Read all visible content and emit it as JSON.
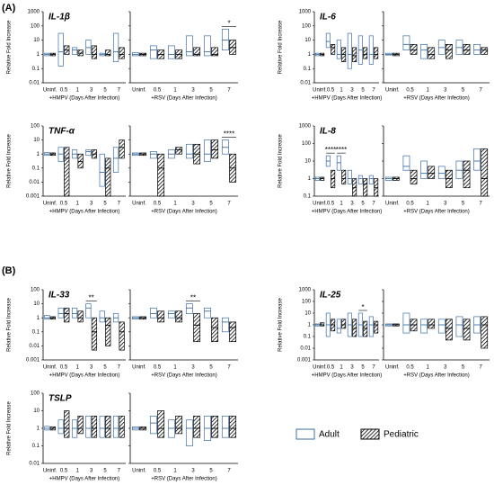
{
  "sections": [
    "(A)",
    "(B)"
  ],
  "chart_data": [
    {
      "type": "box",
      "title": "IL-1β",
      "ylabel": "Relative Fold Increase",
      "xlabel": "+HMPV (Days After Infection)",
      "log": true,
      "ylim": [
        0.01,
        1000
      ],
      "yticks": [
        1000,
        100,
        10,
        1,
        0.1,
        0.01
      ],
      "categories": [
        "Uninf.",
        "0.5",
        "1",
        "3",
        "5",
        "7"
      ],
      "series": [
        {
          "name": "Adult",
          "color": "#3b6ea5",
          "q1": [
            0.8,
            0.15,
            1,
            1,
            0.8,
            0.3
          ],
          "median": [
            1,
            1.5,
            2,
            3,
            1,
            1.5
          ],
          "q3": [
            1.2,
            30,
            3,
            10,
            1.2,
            30
          ]
        },
        {
          "name": "Pediatric",
          "color": "#000000",
          "q1": [
            0.8,
            1,
            0.8,
            0.5,
            0.8,
            0.5
          ],
          "median": [
            1,
            2,
            1.2,
            1,
            1,
            1
          ],
          "q3": [
            1.2,
            4,
            2,
            4,
            2,
            3
          ]
        }
      ]
    },
    {
      "type": "box",
      "xlabel": "+RSV (Days After Infection)",
      "log": true,
      "ylim": [
        0.01,
        1000
      ],
      "yticks": [
        1000,
        100,
        10,
        1,
        0.1,
        0.01
      ],
      "categories": [
        "Uninf.",
        "0.5",
        "1",
        "3",
        "5",
        "7"
      ],
      "series": [
        {
          "name": "Adult",
          "color": "#3b6ea5",
          "q1": [
            0.8,
            0.5,
            0.5,
            0.8,
            0.8,
            2
          ],
          "median": [
            1,
            2,
            1,
            1.5,
            1.5,
            10
          ],
          "q3": [
            1.3,
            4,
            4,
            20,
            20,
            60
          ]
        },
        {
          "name": "Pediatric",
          "color": "#000000",
          "q1": [
            0.8,
            0.5,
            0.5,
            0.8,
            0.8,
            1
          ],
          "median": [
            1,
            1,
            1,
            1,
            1,
            3
          ],
          "q3": [
            1.2,
            2,
            2,
            3,
            3,
            10
          ]
        }
      ],
      "annotations": [
        {
          "text": "*",
          "category": "7"
        }
      ]
    },
    {
      "type": "box",
      "title": "IL-6",
      "ylabel": "Relative Fold Increase",
      "xlabel": "+HMPV (Days After Infection)",
      "log": true,
      "ylim": [
        0.01,
        1000
      ],
      "yticks": [
        1000,
        100,
        10,
        1,
        0.1,
        0.01
      ],
      "categories": [
        "Uninf.",
        "0.5",
        "1",
        "3",
        "5",
        "7"
      ],
      "series": [
        {
          "name": "Adult",
          "color": "#3b6ea5",
          "q1": [
            0.8,
            3,
            0.5,
            0.1,
            0.2,
            0.2
          ],
          "median": [
            1,
            8,
            1,
            1,
            2,
            1
          ],
          "q3": [
            1.2,
            30,
            10,
            30,
            20,
            20
          ]
        },
        {
          "name": "Pediatric",
          "color": "#000000",
          "q1": [
            0.8,
            1,
            0.3,
            0.3,
            0.5,
            0.5
          ],
          "median": [
            1,
            3,
            1,
            0.8,
            1,
            1
          ],
          "q3": [
            1.2,
            5,
            3,
            3,
            3,
            3
          ]
        }
      ]
    },
    {
      "type": "box",
      "xlabel": "+RSV (Days After Infection)",
      "log": true,
      "ylim": [
        0.01,
        1000
      ],
      "yticks": [
        1000,
        100,
        10,
        1,
        0.1,
        0.01
      ],
      "categories": [
        "Uninf.",
        "0.5",
        "1",
        "3",
        "5",
        "7"
      ],
      "series": [
        {
          "name": "Adult",
          "color": "#3b6ea5",
          "q1": [
            0.9,
            2,
            0.5,
            1,
            1,
            1
          ],
          "median": [
            1,
            5,
            2,
            3,
            3,
            2
          ],
          "q3": [
            1.2,
            20,
            5,
            10,
            10,
            5
          ]
        },
        {
          "name": "Pediatric",
          "color": "#000000",
          "q1": [
            0.8,
            1,
            0.5,
            0.5,
            1,
            1
          ],
          "median": [
            1,
            2,
            1,
            2,
            2,
            2
          ],
          "q3": [
            1.2,
            5,
            3,
            5,
            5,
            3
          ]
        }
      ]
    },
    {
      "type": "box",
      "title": "TNF-α",
      "ylabel": "Relative Fold Increase",
      "xlabel": "+HMPV (Days After Infection)",
      "log": true,
      "ylim": [
        0.001,
        100
      ],
      "yticks": [
        100,
        10,
        1,
        0.1,
        0.01,
        0.001
      ],
      "categories": [
        "Uninf.",
        "0.5",
        "1",
        "3",
        "5",
        "7"
      ],
      "series": [
        {
          "name": "Adult",
          "color": "#3b6ea5",
          "q1": [
            0.8,
            0.3,
            0.5,
            0.8,
            0.005,
            0.05
          ],
          "median": [
            1,
            1,
            1,
            1.5,
            0.05,
            0.5
          ],
          "q3": [
            1.3,
            3,
            2,
            2,
            1,
            3
          ]
        },
        {
          "name": "Pediatric",
          "color": "#000000",
          "q1": [
            0.8,
            0.001,
            0.1,
            0.5,
            0.001,
            0.5
          ],
          "median": [
            1,
            0.5,
            0.3,
            1,
            0.1,
            3
          ],
          "q3": [
            1.2,
            3,
            1,
            2,
            0.5,
            10
          ]
        }
      ]
    },
    {
      "type": "box",
      "xlabel": "+RSV (Days After Infection)",
      "log": true,
      "ylim": [
        0.001,
        100
      ],
      "yticks": [
        100,
        10,
        1,
        0.1,
        0.01,
        0.001
      ],
      "categories": [
        "Uninf.",
        "0.5",
        "1",
        "3",
        "5",
        "7"
      ],
      "series": [
        {
          "name": "Adult",
          "color": "#3b6ea5",
          "q1": [
            0.8,
            0.5,
            0.5,
            0.5,
            0.3,
            1
          ],
          "median": [
            1,
            1,
            1,
            1,
            1,
            3
          ],
          "q3": [
            1.2,
            1.5,
            2,
            5,
            10,
            10
          ]
        },
        {
          "name": "Pediatric",
          "color": "#000000",
          "q1": [
            0.8,
            0.001,
            1,
            0.2,
            0.5,
            0.01
          ],
          "median": [
            1,
            0.1,
            2,
            1,
            2,
            0.1
          ],
          "q3": [
            1.2,
            1,
            3,
            5,
            10,
            1
          ]
        }
      ],
      "annotations": [
        {
          "text": "****",
          "category": "7"
        }
      ]
    },
    {
      "type": "box",
      "title": "IL-8",
      "ylabel": "Relative Fold Increase",
      "xlabel": "+HMPV (Days After Infection)",
      "log": true,
      "ylim": [
        0.1,
        1000
      ],
      "yticks": [
        1000,
        100,
        10,
        1,
        0.1
      ],
      "categories": [
        "Uninf.",
        "0.5",
        "1",
        "3",
        "5",
        "7"
      ],
      "series": [
        {
          "name": "Adult",
          "color": "#3b6ea5",
          "q1": [
            0.8,
            5,
            3,
            0.5,
            0.5,
            0.5
          ],
          "median": [
            1,
            10,
            8,
            1,
            1,
            1
          ],
          "q3": [
            1.2,
            20,
            20,
            3,
            1.5,
            1.5
          ]
        },
        {
          "name": "Pediatric",
          "color": "#000000",
          "q1": [
            0.8,
            0.3,
            0.5,
            0.1,
            0.1,
            0.1
          ],
          "median": [
            1,
            1,
            1,
            0.3,
            0.5,
            0.3
          ],
          "q3": [
            1.2,
            3,
            3,
            1,
            1,
            1
          ]
        }
      ],
      "annotations": [
        {
          "text": "****",
          "category": "0.5"
        },
        {
          "text": "****",
          "category": "1"
        }
      ]
    },
    {
      "type": "box",
      "xlabel": "+RSV (Days After Infection)",
      "log": true,
      "ylim": [
        0.1,
        1000
      ],
      "yticks": [
        1000,
        100,
        10,
        1,
        0.1
      ],
      "categories": [
        "Uninf.",
        "0.5",
        "1",
        "3",
        "5",
        "7"
      ],
      "series": [
        {
          "name": "Adult",
          "color": "#3b6ea5",
          "q1": [
            0.8,
            3,
            1,
            1,
            1,
            3
          ],
          "median": [
            1,
            5,
            2,
            2,
            3,
            10
          ],
          "q3": [
            1.2,
            20,
            10,
            5,
            10,
            50
          ]
        },
        {
          "name": "Pediatric",
          "color": "#000000",
          "q1": [
            0.8,
            0.5,
            1,
            0.3,
            0.3,
            0.1
          ],
          "median": [
            1,
            1,
            2,
            1,
            3,
            1
          ],
          "q3": [
            1.2,
            3,
            5,
            3,
            10,
            50
          ]
        }
      ]
    },
    {
      "type": "box",
      "title": "IL-33",
      "ylabel": "Relative Fold Increase",
      "xlabel": "+HMPV (Days After Infection)",
      "log": true,
      "ylim": [
        0.001,
        100
      ],
      "yticks": [
        100,
        10,
        1,
        0.1,
        0.01,
        0.001
      ],
      "categories": [
        "Uninf.",
        "0.5",
        "1",
        "3",
        "5",
        "7"
      ],
      "series": [
        {
          "name": "Adult",
          "color": "#3b6ea5",
          "q1": [
            0.8,
            1,
            1,
            1,
            0.5,
            0.5
          ],
          "median": [
            1,
            2,
            2,
            5,
            1,
            1
          ],
          "q3": [
            1.5,
            5,
            5,
            10,
            3,
            2
          ]
        },
        {
          "name": "Pediatric",
          "color": "#000000",
          "q1": [
            0.8,
            0.5,
            0.5,
            0.005,
            0.01,
            0.005
          ],
          "median": [
            1,
            2,
            1,
            0.1,
            0.3,
            0.1
          ],
          "q3": [
            1.2,
            5,
            3,
            1,
            1,
            0.5
          ]
        }
      ],
      "annotations": [
        {
          "text": "**",
          "category": "3"
        }
      ]
    },
    {
      "type": "box",
      "xlabel": "+RSV (Days After Infection)",
      "log": true,
      "ylim": [
        0.001,
        100
      ],
      "yticks": [
        100,
        10,
        1,
        0.1,
        0.01,
        0.001
      ],
      "categories": [
        "Uninf.",
        "0.5",
        "1",
        "3",
        "5",
        "7"
      ],
      "series": [
        {
          "name": "Adult",
          "color": "#3b6ea5",
          "q1": [
            0.8,
            1,
            1,
            2,
            1,
            0.1
          ],
          "median": [
            1,
            2,
            2,
            5,
            3,
            0.5
          ],
          "q3": [
            1.2,
            5,
            3,
            10,
            5,
            1
          ]
        },
        {
          "name": "Pediatric",
          "color": "#000000",
          "q1": [
            0.8,
            0.5,
            0.5,
            0.02,
            0.02,
            0.02
          ],
          "median": [
            1,
            1,
            1,
            0.3,
            0.2,
            0.2
          ],
          "q3": [
            1.2,
            3,
            3,
            2,
            1,
            0.5
          ]
        }
      ],
      "annotations": [
        {
          "text": "**",
          "category": "3"
        }
      ]
    },
    {
      "type": "box",
      "title": "IL-25",
      "ylabel": "Relative Fold Increase",
      "xlabel": "+HMPV (Days After Infection)",
      "log": true,
      "ylim": [
        0.001,
        1000
      ],
      "yticks": [
        1000,
        100,
        10,
        1,
        0.1,
        0.01,
        0.001
      ],
      "categories": [
        "Uninf.",
        "0.5",
        "1",
        "3",
        "5",
        "7"
      ],
      "series": [
        {
          "name": "Adult",
          "color": "#3b6ea5",
          "q1": [
            0.8,
            0.1,
            0.2,
            0.1,
            0.1,
            0.1
          ],
          "median": [
            1,
            1,
            0.5,
            1,
            1,
            1
          ],
          "q3": [
            1.2,
            10,
            3,
            10,
            10,
            5
          ]
        },
        {
          "name": "Pediatric",
          "color": "#000000",
          "q1": [
            0.8,
            0.3,
            0.5,
            0.1,
            0.1,
            0.2
          ],
          "median": [
            1,
            1,
            1,
            0.5,
            0.5,
            1
          ],
          "q3": [
            1.5,
            3,
            3,
            3,
            2,
            2
          ]
        }
      ],
      "annotations": [
        {
          "text": "*",
          "category": "5"
        }
      ]
    },
    {
      "type": "box",
      "xlabel": "+RSV (Days After Infection)",
      "log": true,
      "ylim": [
        0.001,
        1000
      ],
      "yticks": [
        1000,
        100,
        10,
        1,
        0.1,
        0.01,
        0.001
      ],
      "categories": [
        "Uninf.",
        "0.5",
        "1",
        "3",
        "5",
        "7"
      ],
      "series": [
        {
          "name": "Adult",
          "color": "#3b6ea5",
          "q1": [
            0.8,
            0.2,
            0.2,
            0.2,
            0.1,
            0.2
          ],
          "median": [
            1,
            1,
            1,
            1,
            1,
            1
          ],
          "q3": [
            1.2,
            10,
            3,
            3,
            5,
            5
          ]
        },
        {
          "name": "Pediatric",
          "color": "#000000",
          "q1": [
            0.8,
            0.3,
            0.5,
            0.05,
            0.05,
            0.01
          ],
          "median": [
            1,
            1,
            1,
            0.5,
            0.5,
            1
          ],
          "q3": [
            1.2,
            3,
            3,
            3,
            3,
            5
          ]
        }
      ]
    },
    {
      "type": "box",
      "title": "TSLP",
      "ylabel": "Relative Fold Increase",
      "xlabel": "+HMPV (Days After Infection)",
      "log": true,
      "ylim": [
        0.01,
        100
      ],
      "yticks": [
        100,
        10,
        1,
        0.1,
        0.01
      ],
      "categories": [
        "Uninf.",
        "0.5",
        "1",
        "3",
        "5",
        "7"
      ],
      "series": [
        {
          "name": "Adult",
          "color": "#3b6ea5",
          "q1": [
            0.8,
            0.5,
            0.3,
            0.3,
            0.3,
            0.3
          ],
          "median": [
            1,
            1,
            1,
            1,
            1,
            1
          ],
          "q3": [
            1.3,
            3,
            3,
            5,
            5,
            5
          ]
        },
        {
          "name": "Pediatric",
          "color": "#000000",
          "q1": [
            0.8,
            0.3,
            0.5,
            0.3,
            0.3,
            0.3
          ],
          "median": [
            1,
            1,
            1,
            1,
            1,
            1
          ],
          "q3": [
            1.2,
            10,
            5,
            5,
            5,
            5
          ]
        }
      ]
    },
    {
      "type": "box",
      "xlabel": "+RSV (Days After Infection)",
      "log": true,
      "ylim": [
        0.01,
        100
      ],
      "yticks": [
        100,
        10,
        1,
        0.1,
        0.01
      ],
      "categories": [
        "Uninf.",
        "0.5",
        "1",
        "3",
        "5",
        "7"
      ],
      "series": [
        {
          "name": "Adult",
          "color": "#3b6ea5",
          "q1": [
            0.8,
            0.5,
            0.3,
            0.1,
            0.2,
            0.3
          ],
          "median": [
            1,
            2,
            1,
            1,
            1,
            1
          ],
          "q3": [
            1.2,
            5,
            3,
            3,
            5,
            5
          ]
        },
        {
          "name": "Pediatric",
          "color": "#000000",
          "q1": [
            0.8,
            0.3,
            0.5,
            0.3,
            0.3,
            0.3
          ],
          "median": [
            1,
            1,
            1,
            1,
            1,
            1
          ],
          "q3": [
            1.2,
            10,
            5,
            5,
            5,
            5
          ]
        }
      ]
    }
  ]
}
